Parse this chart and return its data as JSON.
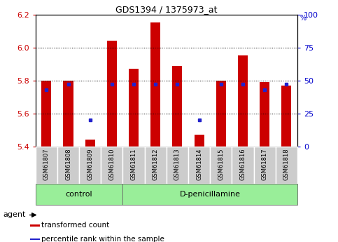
{
  "title": "GDS1394 / 1375973_at",
  "samples": [
    "GSM61807",
    "GSM61808",
    "GSM61809",
    "GSM61810",
    "GSM61811",
    "GSM61812",
    "GSM61813",
    "GSM61814",
    "GSM61815",
    "GSM61816",
    "GSM61817",
    "GSM61818"
  ],
  "bar_bottoms": [
    5.4,
    5.4,
    5.4,
    5.4,
    5.4,
    5.4,
    5.4,
    5.4,
    5.4,
    5.4,
    5.4,
    5.4
  ],
  "bar_tops": [
    5.8,
    5.8,
    5.44,
    6.04,
    5.87,
    6.15,
    5.89,
    5.47,
    5.8,
    5.95,
    5.79,
    5.77
  ],
  "percentile_vals": [
    0.43,
    0.47,
    0.2,
    0.47,
    0.47,
    0.47,
    0.47,
    0.2,
    0.47,
    0.47,
    0.43,
    0.47
  ],
  "ylim": [
    5.4,
    6.2
  ],
  "yticks_left": [
    5.4,
    5.6,
    5.8,
    6.0,
    6.2
  ],
  "yticks_right": [
    0,
    25,
    50,
    75,
    100
  ],
  "bar_color": "#cc0000",
  "dot_color": "#2222cc",
  "control_label": "control",
  "treatment_label": "D-penicillamine",
  "agent_label": "agent",
  "legend_bar_label": "transformed count",
  "legend_dot_label": "percentile rank within the sample",
  "group_box_color": "#99ee99",
  "sample_box_color": "#cccccc",
  "ylabel_left_color": "#cc0000",
  "ylabel_right_color": "#0000cc",
  "right_axis_label": "%",
  "bar_width": 0.45
}
